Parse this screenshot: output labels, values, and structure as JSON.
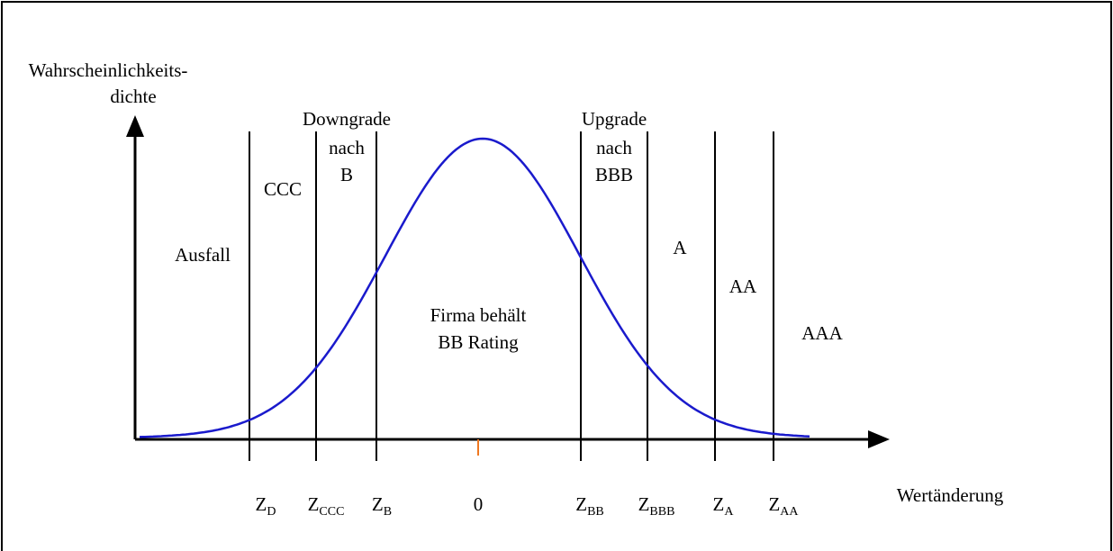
{
  "axis": {
    "y_label": [
      "Wahrscheinlichkeits-",
      "dichte"
    ],
    "x_label": "Wertänderung"
  },
  "regions": {
    "downgrade": [
      "Downgrade",
      "nach",
      "B"
    ],
    "ccc": "CCC",
    "ausfall": "Ausfall",
    "upgrade": [
      "Upgrade",
      "nach",
      "BBB"
    ],
    "a": "A",
    "aa": "AA",
    "aaa": "AAA",
    "center": [
      "Firma behält",
      "BB Rating"
    ]
  },
  "thresholds": [
    {
      "symbol": "Z",
      "sub": "D"
    },
    {
      "symbol": "Z",
      "sub": "CCC"
    },
    {
      "symbol": "Z",
      "sub": "B"
    },
    {
      "symbol": "0"
    },
    {
      "symbol": "Z",
      "sub": "BB"
    },
    {
      "symbol": "Z",
      "sub": "BBB"
    },
    {
      "symbol": "Z",
      "sub": "A"
    },
    {
      "symbol": "Z",
      "sub": "AA"
    }
  ]
}
